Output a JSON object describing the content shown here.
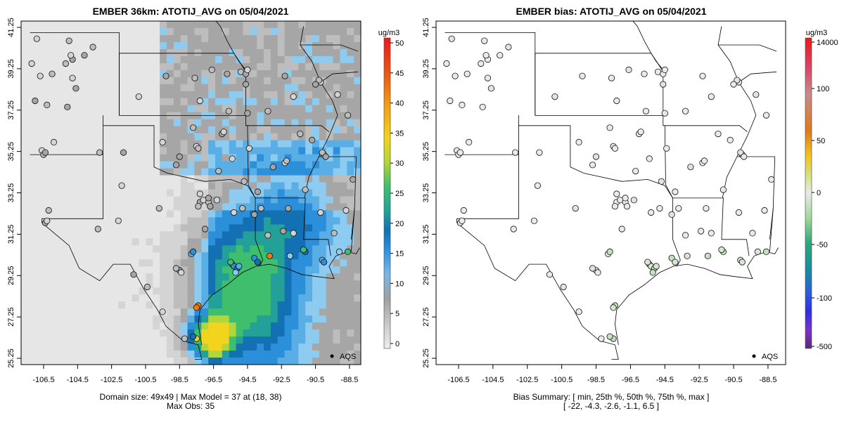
{
  "left_panel": {
    "title": "EMBER 36km: ATOTIJ_AVG on 05/04/2021",
    "unit": "ug/m3",
    "legend_label": "AQS",
    "caption_line1": "Domain size: 49x49 | Max Model = 37 at (18, 38)",
    "caption_line2": "Max Obs: 35",
    "lon_ticks": [
      "-106.5",
      "-104.5",
      "-102.5",
      "-100.5",
      "-98.5",
      "-96.5",
      "-94.5",
      "-92.5",
      "-90.5",
      "-88.5"
    ],
    "lat_ticks": [
      "41.25",
      "39.25",
      "37.25",
      "35.25",
      "33.25",
      "31.25",
      "29.25",
      "27.25",
      "25.25"
    ],
    "colorbar_ticks": [
      "0",
      "5",
      "10",
      "15",
      "20",
      "25",
      "30",
      "35",
      "40",
      "45",
      "50"
    ],
    "colorbar_colors": [
      "#eeeeee",
      "#c8c8c8",
      "#a0a0a0",
      "#7ab6e6",
      "#2b8fd9",
      "#1370b3",
      "#23a098",
      "#3fbf6e",
      "#b2d63a",
      "#f2d31d",
      "#f0a018",
      "#ea5a16",
      "#e81b1b"
    ]
  },
  "right_panel": {
    "title": "EMBER bias: ATOTIJ_AVG on 05/04/2021",
    "unit": "ug/m3",
    "legend_label": "AQS",
    "caption_line1": "Bias Summary: [ min, 25th %, 50th %, 75th %, max ]",
    "caption_line2": "[ -22,   -4.3,   -2.6,   -1.1,   6.5 ]",
    "lon_ticks": [
      "-106.5",
      "-104.5",
      "-102.5",
      "-100.5",
      "-98.5",
      "-96.5",
      "-94.5",
      "-92.5",
      "-90.5",
      "-88.5"
    ],
    "lat_ticks": [
      "41.25",
      "39.25",
      "37.25",
      "35.25",
      "33.25",
      "31.25",
      "29.25",
      "27.25",
      "25.25"
    ],
    "colorbar_ticks": [
      "14000",
      "100",
      "50",
      "0",
      "-50",
      "-100",
      "-500"
    ],
    "colorbar_colors": [
      "#e81b1b",
      "#d94a6a",
      "#c98a8a",
      "#e07a18",
      "#f2c41d",
      "#d6e07a",
      "#eaeaea",
      "#9fd89a",
      "#2ea878",
      "#1a8f9e",
      "#2a5fd9",
      "#2f2fe0",
      "#7a33c8",
      "#5a2a7a"
    ]
  },
  "chart_data": [
    {
      "type": "heatmap",
      "title": "EMBER 36km: ATOTIJ_AVG on 05/04/2021",
      "unit": "ug/m3",
      "domain_size": "49x49",
      "max_model": 37,
      "max_model_cell": [
        18,
        38
      ],
      "max_obs": 35,
      "x_ticks": [
        -106.5,
        -104.5,
        -102.5,
        -100.5,
        -98.5,
        -96.5,
        -94.5,
        -92.5,
        -90.5,
        -88.5
      ],
      "y_ticks": [
        41.25,
        39.25,
        37.25,
        35.25,
        33.25,
        31.25,
        29.25,
        27.25,
        25.25
      ],
      "xlim": [
        -107.3,
        -87.9
      ],
      "ylim": [
        25.25,
        41.6
      ],
      "colorbar_range": [
        0,
        50
      ],
      "legend": "AQS",
      "legend_placement": "bottom-right"
    },
    {
      "type": "scatter",
      "title": "EMBER bias: ATOTIJ_AVG on 05/04/2021",
      "unit": "ug/m3",
      "bias_summary": {
        "min": -22,
        "p25": -4.3,
        "p50": -2.6,
        "p75": -1.1,
        "max": 6.5
      },
      "x_ticks": [
        -106.5,
        -104.5,
        -102.5,
        -100.5,
        -98.5,
        -96.5,
        -94.5,
        -92.5,
        -90.5,
        -88.5
      ],
      "y_ticks": [
        41.25,
        39.25,
        37.25,
        35.25,
        33.25,
        31.25,
        29.25,
        27.25,
        25.25
      ],
      "xlim": [
        -107.3,
        -87.9
      ],
      "ylim": [
        25.25,
        41.6
      ],
      "colorbar_ticks": [
        14000,
        100,
        50,
        0,
        -50,
        -100,
        -500
      ],
      "legend": "AQS",
      "legend_placement": "bottom-right"
    }
  ]
}
